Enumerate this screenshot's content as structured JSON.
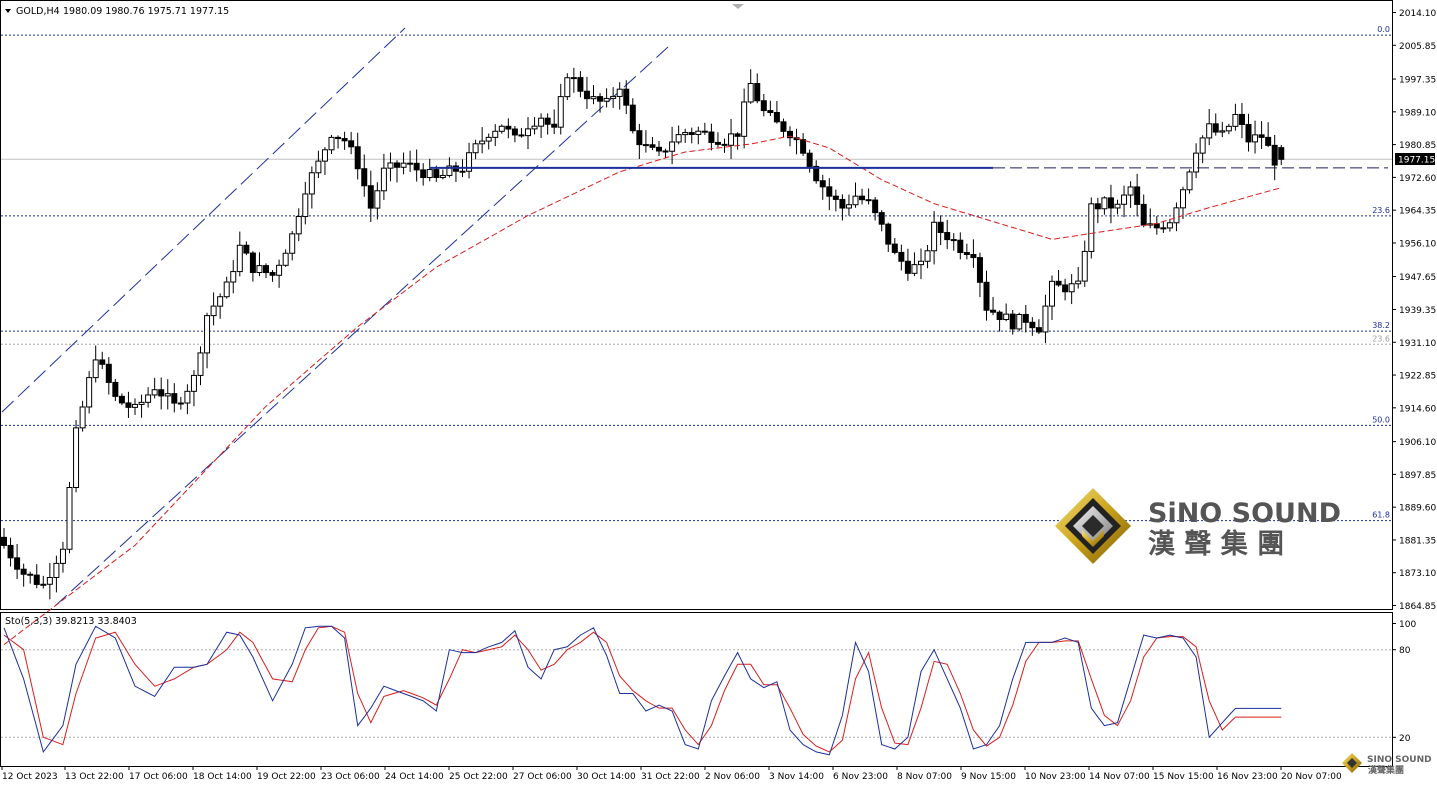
{
  "header": {
    "symbol": "GOLD,H4",
    "ohlc": "1980.09 1980.76 1975.71 1977.15"
  },
  "price_axis": {
    "ticks": [
      "2014.10",
      "2005.85",
      "1997.35",
      "1989.10",
      "1980.85",
      "1972.60",
      "1964.35",
      "1956.10",
      "1947.65",
      "1939.35",
      "1931.10",
      "1922.85",
      "1914.60",
      "1906.10",
      "1897.85",
      "1889.60",
      "1881.35",
      "1873.10",
      "1864.85"
    ],
    "current_price": "1977.15",
    "current_price_color": "#000000"
  },
  "fibonacci": {
    "levels": [
      {
        "label": "0.0",
        "price": 2008.4
      },
      {
        "label": "23.6",
        "price": 1962.9
      },
      {
        "label": "38.2",
        "price": 1933.9
      },
      {
        "label": "23.6",
        "price": 1930.6
      },
      {
        "label": "50.0",
        "price": 1910.2
      },
      {
        "label": "61.8",
        "price": 1886.2
      }
    ]
  },
  "oscillator": {
    "label": "Sto(5,3,3) 39.8213 33.8403",
    "levels": [
      "100",
      "80",
      "20"
    ]
  },
  "time_axis": {
    "labels": [
      "12 Oct 2023",
      "13 Oct 22:00",
      "17 Oct 06:00",
      "18 Oct 14:00",
      "19 Oct 22:00",
      "23 Oct 06:00",
      "24 Oct 14:00",
      "25 Oct 22:00",
      "27 Oct 06:00",
      "30 Oct 14:00",
      "31 Oct 22:00",
      "2 Nov 06:00",
      "3 Nov 14:00",
      "6 Nov 23:00",
      "8 Nov 07:00",
      "9 Nov 15:00",
      "10 Nov 23:00",
      "14 Nov 07:00",
      "15 Nov 15:00",
      "16 Nov 23:00",
      "20 Nov 07:00"
    ]
  },
  "watermark": {
    "brand_en": "SiNO SOUND",
    "brand_zh": "漢 聲 集 團",
    "small_en": "SINO SOUND",
    "small_zh": "漢聲集團"
  },
  "colors": {
    "up_candle": "#ffffff",
    "down_candle": "#000000",
    "moving_average": "#d81e1e",
    "channel": "#1d2f9a",
    "fib_line": "#1d2f9a",
    "sto_main": "#1d2f9a",
    "sto_signal": "#d81e1e",
    "horizontal_line": "#1d2f9a"
  },
  "chart_data": {
    "type": "candlestick",
    "symbol": "GOLD",
    "timeframe": "H4",
    "ylim": [
      1864.85,
      2016.5
    ],
    "close_anchors": [
      [
        0,
        1880
      ],
      [
        3,
        1873
      ],
      [
        6,
        1870
      ],
      [
        9,
        1880
      ],
      [
        11,
        1908
      ],
      [
        14,
        1928
      ],
      [
        17,
        1917
      ],
      [
        20,
        1914
      ],
      [
        23,
        1920
      ],
      [
        26,
        1915
      ],
      [
        29,
        1922
      ],
      [
        31,
        1938
      ],
      [
        34,
        1945
      ],
      [
        36,
        1955
      ],
      [
        38,
        1950
      ],
      [
        41,
        1948
      ],
      [
        44,
        1958
      ],
      [
        46,
        1970
      ],
      [
        48,
        1976
      ],
      [
        50,
        1984
      ],
      [
        52,
        1982
      ],
      [
        54,
        1976
      ],
      [
        56,
        1965
      ],
      [
        58,
        1974
      ],
      [
        61,
        1976
      ],
      [
        64,
        1974
      ],
      [
        66,
        1972
      ],
      [
        68,
        1974
      ],
      [
        70,
        1975
      ],
      [
        72,
        1980
      ],
      [
        74,
        1984
      ],
      [
        76,
        1986
      ],
      [
        78,
        1982
      ],
      [
        80,
        1986
      ],
      [
        82,
        1988
      ],
      [
        84,
        1984
      ],
      [
        86,
        1999
      ],
      [
        88,
        1995
      ],
      [
        90,
        1992
      ],
      [
        92,
        1991
      ],
      [
        94,
        1996
      ],
      [
        96,
        1984
      ],
      [
        98,
        1980
      ],
      [
        100,
        1978
      ],
      [
        102,
        1982
      ],
      [
        104,
        1984
      ],
      [
        106,
        1984
      ],
      [
        108,
        1983
      ],
      [
        110,
        1982
      ],
      [
        112,
        1984
      ],
      [
        114,
        1996
      ],
      [
        116,
        1989
      ],
      [
        118,
        1986
      ],
      [
        120,
        1984
      ],
      [
        122,
        1980
      ],
      [
        124,
        1973
      ],
      [
        126,
        1968
      ],
      [
        128,
        1965
      ],
      [
        130,
        1968
      ],
      [
        132,
        1966
      ],
      [
        134,
        1960
      ],
      [
        136,
        1953
      ],
      [
        138,
        1950
      ],
      [
        140,
        1950
      ],
      [
        142,
        1960
      ],
      [
        144,
        1958
      ],
      [
        146,
        1955
      ],
      [
        148,
        1954
      ],
      [
        150,
        1940
      ],
      [
        152,
        1938
      ],
      [
        154,
        1936
      ],
      [
        156,
        1937
      ],
      [
        158,
        1935
      ],
      [
        160,
        1945
      ],
      [
        162,
        1945
      ],
      [
        164,
        1945
      ],
      [
        166,
        1965
      ],
      [
        168,
        1966
      ],
      [
        170,
        1965
      ],
      [
        172,
        1970
      ],
      [
        174,
        1960
      ],
      [
        176,
        1960
      ],
      [
        178,
        1962
      ],
      [
        180,
        1970
      ],
      [
        182,
        1980
      ],
      [
        184,
        1985
      ],
      [
        186,
        1983
      ],
      [
        188,
        1988
      ],
      [
        190,
        1982
      ],
      [
        192,
        1983
      ],
      [
        194,
        1977
      ],
      [
        195,
        1977
      ]
    ],
    "moving_average_anchors": [
      [
        0,
        1855
      ],
      [
        20,
        1880
      ],
      [
        40,
        1915
      ],
      [
        54,
        1935
      ],
      [
        66,
        1950
      ],
      [
        80,
        1963
      ],
      [
        94,
        1974
      ],
      [
        104,
        1979
      ],
      [
        114,
        1981
      ],
      [
        120,
        1983
      ],
      [
        126,
        1980
      ],
      [
        134,
        1972
      ],
      [
        142,
        1966
      ],
      [
        150,
        1962
      ],
      [
        160,
        1957
      ],
      [
        168,
        1959
      ],
      [
        176,
        1961
      ],
      [
        184,
        1965
      ],
      [
        195,
        1970
      ]
    ],
    "horizontal_line": 1975.0,
    "stochastic_main": [
      [
        0,
        95
      ],
      [
        3,
        60
      ],
      [
        6,
        10
      ],
      [
        9,
        28
      ],
      [
        11,
        70
      ],
      [
        14,
        96
      ],
      [
        17,
        88
      ],
      [
        20,
        55
      ],
      [
        23,
        48
      ],
      [
        26,
        68
      ],
      [
        29,
        68
      ],
      [
        31,
        70
      ],
      [
        34,
        92
      ],
      [
        36,
        90
      ],
      [
        38,
        75
      ],
      [
        41,
        45
      ],
      [
        44,
        70
      ],
      [
        46,
        95
      ],
      [
        48,
        96
      ],
      [
        50,
        96
      ],
      [
        52,
        88
      ],
      [
        54,
        28
      ],
      [
        56,
        40
      ],
      [
        58,
        55
      ],
      [
        61,
        50
      ],
      [
        64,
        45
      ],
      [
        66,
        38
      ],
      [
        68,
        80
      ],
      [
        70,
        78
      ],
      [
        72,
        78
      ],
      [
        74,
        82
      ],
      [
        76,
        85
      ],
      [
        78,
        93
      ],
      [
        80,
        68
      ],
      [
        82,
        60
      ],
      [
        84,
        80
      ],
      [
        86,
        82
      ],
      [
        88,
        90
      ],
      [
        90,
        95
      ],
      [
        92,
        76
      ],
      [
        94,
        50
      ],
      [
        96,
        50
      ],
      [
        98,
        38
      ],
      [
        100,
        42
      ],
      [
        102,
        38
      ],
      [
        104,
        15
      ],
      [
        106,
        12
      ],
      [
        108,
        45
      ],
      [
        110,
        62
      ],
      [
        112,
        78
      ],
      [
        114,
        60
      ],
      [
        116,
        54
      ],
      [
        118,
        58
      ],
      [
        120,
        25
      ],
      [
        122,
        15
      ],
      [
        124,
        10
      ],
      [
        126,
        8
      ],
      [
        128,
        35
      ],
      [
        130,
        85
      ],
      [
        132,
        65
      ],
      [
        134,
        15
      ],
      [
        136,
        12
      ],
      [
        138,
        20
      ],
      [
        140,
        65
      ],
      [
        142,
        80
      ],
      [
        144,
        60
      ],
      [
        146,
        40
      ],
      [
        148,
        12
      ],
      [
        150,
        15
      ],
      [
        152,
        28
      ],
      [
        154,
        60
      ],
      [
        156,
        85
      ],
      [
        158,
        85
      ],
      [
        160,
        85
      ],
      [
        162,
        88
      ],
      [
        164,
        85
      ],
      [
        166,
        40
      ],
      [
        168,
        28
      ],
      [
        170,
        30
      ],
      [
        172,
        60
      ],
      [
        174,
        90
      ],
      [
        176,
        88
      ],
      [
        178,
        90
      ],
      [
        180,
        88
      ],
      [
        182,
        75
      ],
      [
        184,
        20
      ],
      [
        186,
        30
      ],
      [
        188,
        39.82
      ],
      [
        195,
        39.82
      ]
    ],
    "stochastic_signal": [
      [
        0,
        90
      ],
      [
        3,
        80
      ],
      [
        6,
        20
      ],
      [
        9,
        15
      ],
      [
        11,
        50
      ],
      [
        14,
        88
      ],
      [
        17,
        92
      ],
      [
        20,
        70
      ],
      [
        23,
        55
      ],
      [
        26,
        60
      ],
      [
        29,
        68
      ],
      [
        31,
        70
      ],
      [
        34,
        80
      ],
      [
        36,
        92
      ],
      [
        38,
        85
      ],
      [
        41,
        60
      ],
      [
        44,
        58
      ],
      [
        46,
        80
      ],
      [
        48,
        95
      ],
      [
        50,
        96
      ],
      [
        52,
        92
      ],
      [
        54,
        50
      ],
      [
        56,
        30
      ],
      [
        58,
        48
      ],
      [
        61,
        52
      ],
      [
        64,
        47
      ],
      [
        66,
        42
      ],
      [
        68,
        60
      ],
      [
        70,
        80
      ],
      [
        72,
        78
      ],
      [
        74,
        80
      ],
      [
        76,
        82
      ],
      [
        78,
        90
      ],
      [
        80,
        80
      ],
      [
        82,
        66
      ],
      [
        84,
        70
      ],
      [
        86,
        80
      ],
      [
        88,
        85
      ],
      [
        90,
        92
      ],
      [
        92,
        85
      ],
      [
        94,
        62
      ],
      [
        96,
        52
      ],
      [
        98,
        45
      ],
      [
        100,
        40
      ],
      [
        102,
        40
      ],
      [
        104,
        25
      ],
      [
        106,
        15
      ],
      [
        108,
        28
      ],
      [
        110,
        52
      ],
      [
        112,
        70
      ],
      [
        114,
        70
      ],
      [
        116,
        56
      ],
      [
        118,
        56
      ],
      [
        120,
        40
      ],
      [
        122,
        22
      ],
      [
        124,
        14
      ],
      [
        126,
        10
      ],
      [
        128,
        18
      ],
      [
        130,
        60
      ],
      [
        132,
        78
      ],
      [
        134,
        40
      ],
      [
        136,
        16
      ],
      [
        138,
        15
      ],
      [
        140,
        40
      ],
      [
        142,
        72
      ],
      [
        144,
        70
      ],
      [
        146,
        50
      ],
      [
        148,
        25
      ],
      [
        150,
        14
      ],
      [
        152,
        20
      ],
      [
        154,
        42
      ],
      [
        156,
        72
      ],
      [
        158,
        85
      ],
      [
        160,
        85
      ],
      [
        162,
        86
      ],
      [
        164,
        86
      ],
      [
        166,
        60
      ],
      [
        168,
        35
      ],
      [
        170,
        28
      ],
      [
        172,
        45
      ],
      [
        174,
        75
      ],
      [
        176,
        88
      ],
      [
        178,
        89
      ],
      [
        180,
        89
      ],
      [
        182,
        82
      ],
      [
        184,
        45
      ],
      [
        186,
        25
      ],
      [
        188,
        33.84
      ],
      [
        195,
        33.84
      ]
    ]
  }
}
